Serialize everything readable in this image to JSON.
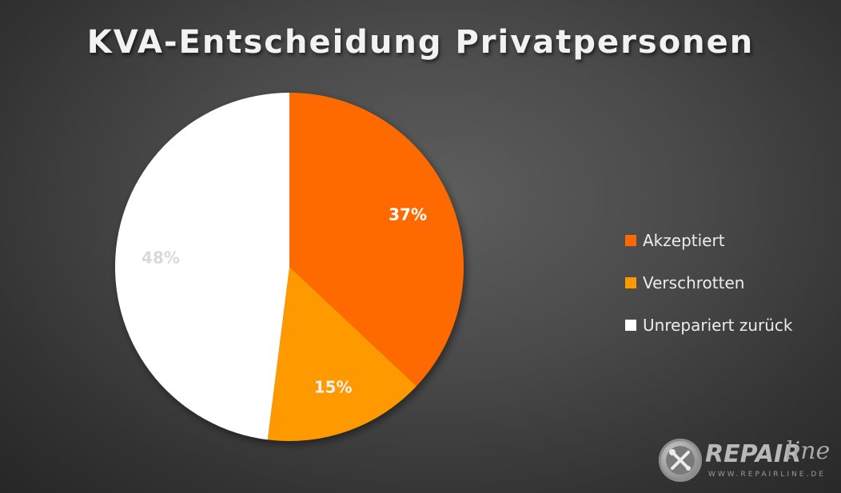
{
  "chart_data": {
    "type": "pie",
    "title": "KVA-Entscheidung Privatpersonen",
    "slices": [
      {
        "name": "Akzeptiert",
        "value": 37,
        "label": "37%",
        "color": "#ff6a00",
        "label_color": "#ffffff"
      },
      {
        "name": "Verschrotten",
        "value": 15,
        "label": "15%",
        "color": "#ff9900",
        "label_color": "#f2f2f2"
      },
      {
        "name": "Unrepariert zurück",
        "value": 48,
        "label": "48%",
        "color": "#ffffff",
        "label_color": "#d9d9d9"
      }
    ],
    "start_angle_deg": 0,
    "direction": "clockwise",
    "legend_position": "right"
  },
  "logo": {
    "word": "REPAIR",
    "script": "line",
    "url": "WWW.REPAIRLINE.DE",
    "icon": "wrench-screwdriver-icon"
  }
}
